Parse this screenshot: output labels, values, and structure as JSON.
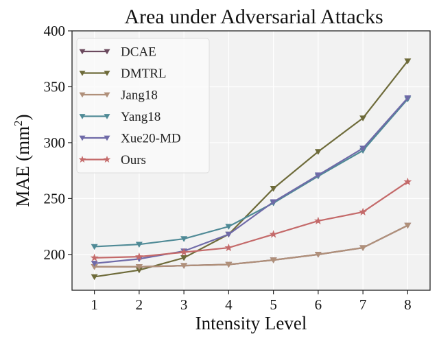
{
  "chart_data": {
    "type": "line",
    "title": "Area under Adversarial Attacks",
    "xlabel": "Intensity Level",
    "ylabel": "MAE (mm",
    "ylabel_sup": "2",
    "ylabel_end": ")",
    "x": [
      1,
      2,
      3,
      4,
      5,
      6,
      7,
      8
    ],
    "xlim": [
      0.5,
      8.5
    ],
    "ylim": [
      168,
      400
    ],
    "yticks": [
      200,
      250,
      300,
      350,
      400
    ],
    "grid": true,
    "legend_position": "top-left",
    "series": [
      {
        "name": "DCAE",
        "color": "#6b4a5e",
        "marker": "triangle-down",
        "values": [
          189,
          189,
          190,
          191,
          195,
          200,
          206,
          226
        ]
      },
      {
        "name": "DMTRL",
        "color": "#6e6b3a",
        "marker": "triangle-down",
        "values": [
          180,
          186,
          197,
          218,
          259,
          292,
          322,
          373
        ]
      },
      {
        "name": "Jang18",
        "color": "#b0907a",
        "marker": "triangle-down",
        "values": [
          189,
          189,
          190,
          191,
          195,
          200,
          206,
          226
        ]
      },
      {
        "name": "Yang18",
        "color": "#4f8a96",
        "marker": "triangle-down",
        "values": [
          207,
          209,
          214,
          225,
          246,
          270,
          293,
          339
        ]
      },
      {
        "name": "Xue20-MD",
        "color": "#6f6aa8",
        "marker": "triangle-down",
        "values": [
          192,
          196,
          203,
          218,
          247,
          271,
          295,
          340
        ]
      },
      {
        "name": "Ours",
        "color": "#c46a6a",
        "marker": "star",
        "values": [
          197,
          198,
          202,
          206,
          218,
          230,
          238,
          265
        ]
      }
    ]
  }
}
